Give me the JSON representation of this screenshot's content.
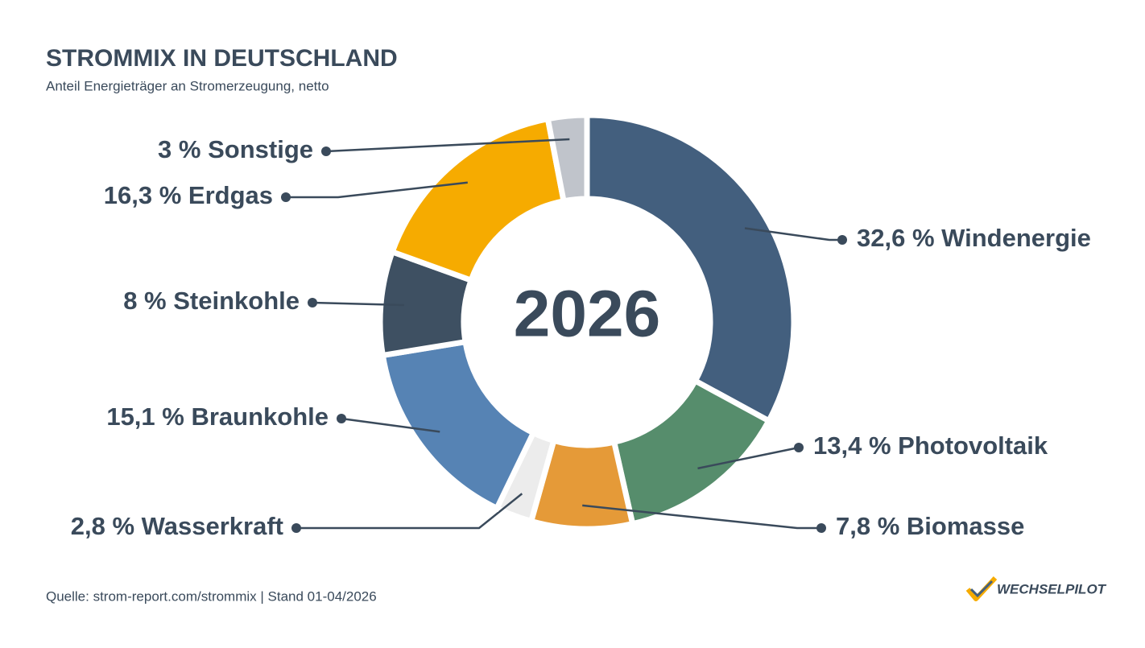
{
  "chart_data": {
    "type": "donut",
    "title": "STROMMIX IN DEUTSCHLAND",
    "subtitle": "Anteil Energieträger an Stromerzeugung, netto",
    "center_label": "2026",
    "source": "Quelle: strom-report.com/strommix | Stand 01-04/2026",
    "logo": "WECHSELPILOT",
    "categories": [
      "Windenergie",
      "Photovoltaik",
      "Biomasse",
      "Wasserkraft",
      "Braunkohle",
      "Steinkohle",
      "Erdgas",
      "Sonstige"
    ],
    "values": [
      32.6,
      13.4,
      7.8,
      2.8,
      15.1,
      8,
      16.3,
      3
    ],
    "value_labels": [
      "32,6 %",
      "13,4 %",
      "7,8 %",
      "2,8 %",
      "15,1 %",
      "8 %",
      "16,3 %",
      "3 %"
    ],
    "colors": [
      "#435f7e",
      "#568d6c",
      "#e59a38",
      "#ececec",
      "#5683b4",
      "#3e5062",
      "#f6ab00",
      "#c0c4cb"
    ]
  }
}
